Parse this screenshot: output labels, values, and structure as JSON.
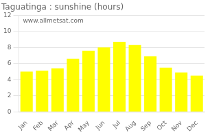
{
  "chart_data": {
    "type": "bar",
    "title": "Taguatinga : sunshine (hours)",
    "categories": [
      "Jan",
      "Feb",
      "Mar",
      "Apr",
      "May",
      "Jun",
      "Jul",
      "Aug",
      "Sep",
      "Oct",
      "Nov",
      "Dec"
    ],
    "values": [
      5.0,
      5.1,
      5.4,
      6.6,
      7.6,
      8.0,
      8.7,
      8.3,
      6.9,
      5.5,
      4.9,
      4.5
    ],
    "color": "#FFFF00",
    "ylim": [
      0,
      12
    ],
    "yticks": [
      0,
      2,
      4,
      6,
      8,
      10,
      12
    ],
    "grid": true,
    "annotations": [
      "www.allmetsat.com"
    ]
  }
}
